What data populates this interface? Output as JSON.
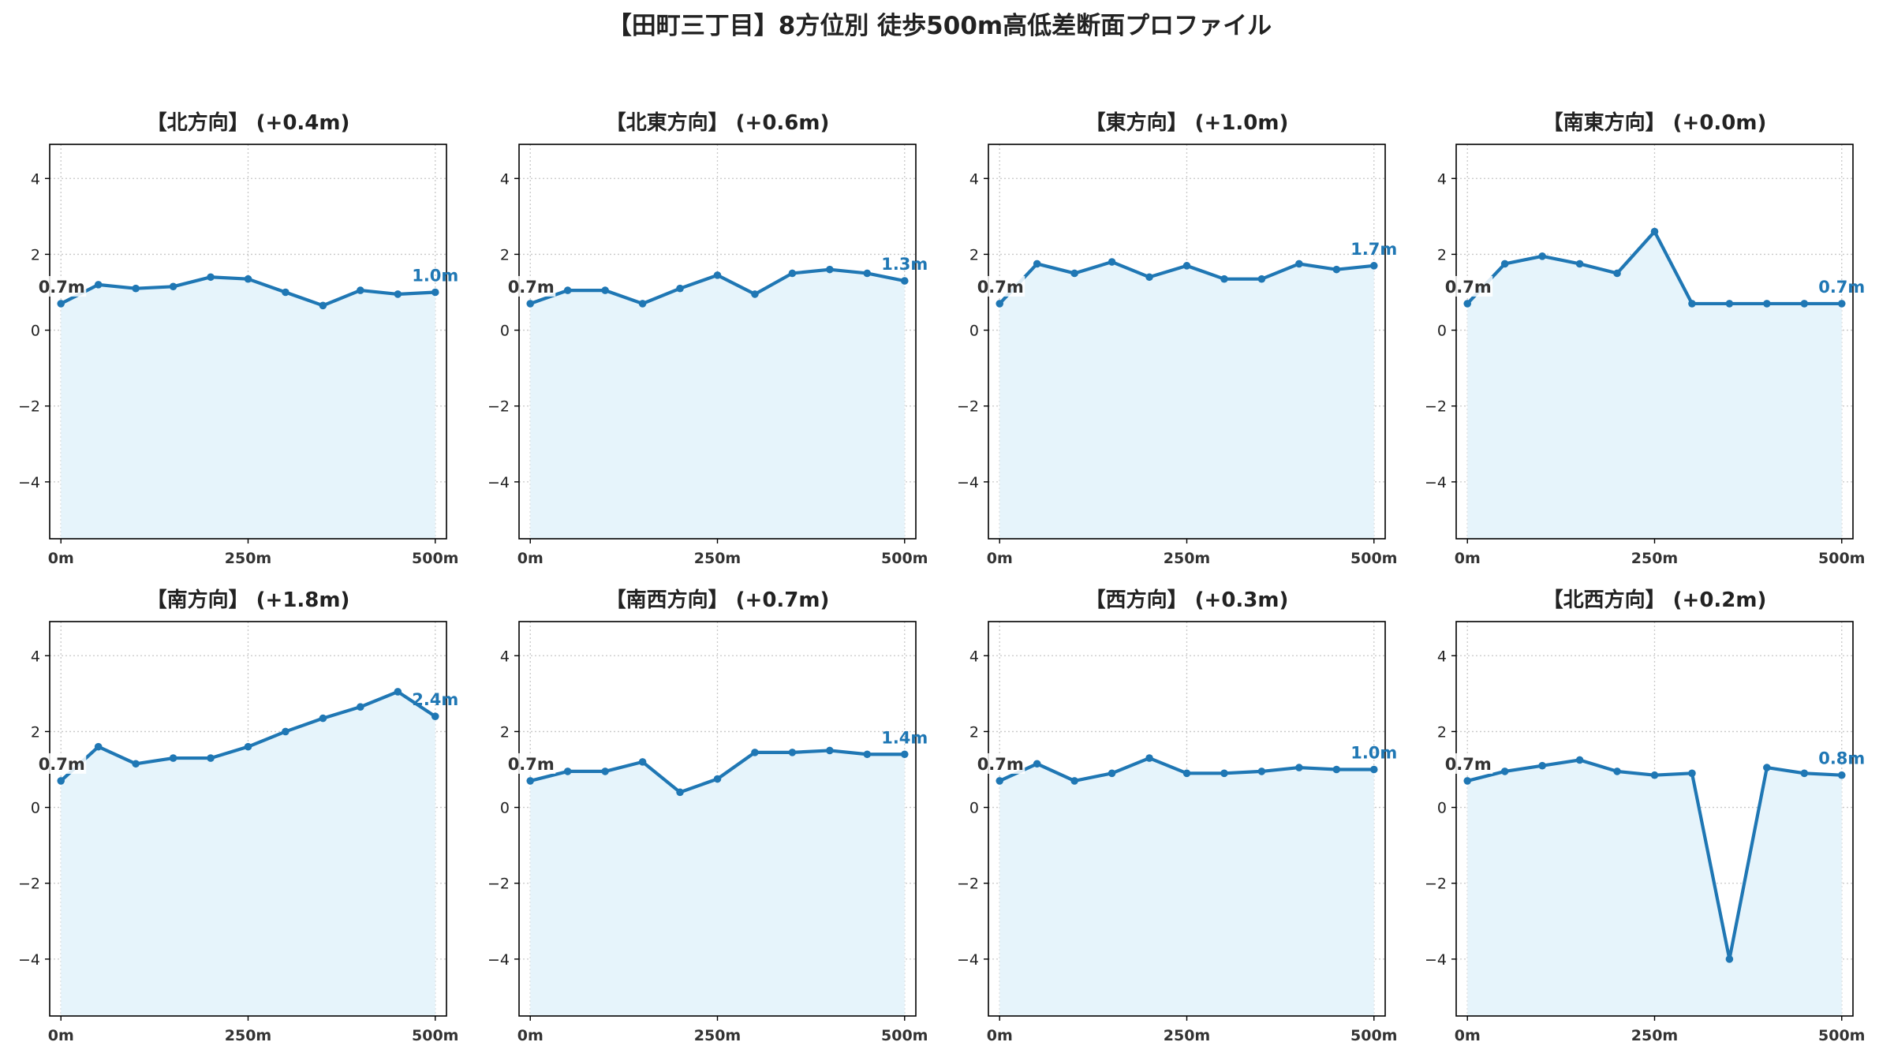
{
  "figure_title": "【田町三丁目】8方位別 徒歩500m高低差断面プロファイル",
  "colors": {
    "line": "#1f77b4",
    "fill": "#e6f4fb",
    "grid": "#c8c8c8",
    "start_label_text": "#333333",
    "end_label_text": "#1f77b4"
  },
  "chart_data": [
    {
      "type": "area",
      "title": "【北方向】 (+0.4m)",
      "x": [
        0,
        50,
        100,
        150,
        200,
        250,
        300,
        350,
        400,
        450,
        500
      ],
      "y": [
        0.7,
        1.2,
        1.1,
        1.15,
        1.4,
        1.35,
        1.0,
        0.65,
        1.05,
        0.95,
        1.0
      ],
      "start_label": "0.7m",
      "end_label": "1.0m",
      "xticks": [
        0,
        250,
        500
      ],
      "xtick_labels": [
        "0m",
        "250m",
        "500m"
      ],
      "yticks": [
        -4,
        -2,
        0,
        2,
        4
      ],
      "ytick_labels": [
        "−4",
        "−2",
        "0",
        "2",
        "4"
      ],
      "xlim": [
        -15,
        515
      ],
      "ylim": [
        -5.5,
        4.9
      ],
      "grid": true
    },
    {
      "type": "area",
      "title": "【北東方向】 (+0.6m)",
      "x": [
        0,
        50,
        100,
        150,
        200,
        250,
        300,
        350,
        400,
        450,
        500
      ],
      "y": [
        0.7,
        1.05,
        1.05,
        0.7,
        1.1,
        1.45,
        0.95,
        1.5,
        1.6,
        1.5,
        1.3
      ],
      "start_label": "0.7m",
      "end_label": "1.3m",
      "xticks": [
        0,
        250,
        500
      ],
      "xtick_labels": [
        "0m",
        "250m",
        "500m"
      ],
      "yticks": [
        -4,
        -2,
        0,
        2,
        4
      ],
      "ytick_labels": [
        "−4",
        "−2",
        "0",
        "2",
        "4"
      ],
      "xlim": [
        -15,
        515
      ],
      "ylim": [
        -5.5,
        4.9
      ],
      "grid": true
    },
    {
      "type": "area",
      "title": "【東方向】 (+1.0m)",
      "x": [
        0,
        50,
        100,
        150,
        200,
        250,
        300,
        350,
        400,
        450,
        500
      ],
      "y": [
        0.7,
        1.75,
        1.5,
        1.8,
        1.4,
        1.7,
        1.35,
        1.35,
        1.75,
        1.6,
        1.7
      ],
      "start_label": "0.7m",
      "end_label": "1.7m",
      "xticks": [
        0,
        250,
        500
      ],
      "xtick_labels": [
        "0m",
        "250m",
        "500m"
      ],
      "yticks": [
        -4,
        -2,
        0,
        2,
        4
      ],
      "ytick_labels": [
        "−4",
        "−2",
        "0",
        "2",
        "4"
      ],
      "xlim": [
        -15,
        515
      ],
      "ylim": [
        -5.5,
        4.9
      ],
      "grid": true
    },
    {
      "type": "area",
      "title": "【南東方向】 (+0.0m)",
      "x": [
        0,
        50,
        100,
        150,
        200,
        250,
        300,
        350,
        400,
        450,
        500
      ],
      "y": [
        0.7,
        1.75,
        1.95,
        1.75,
        1.5,
        2.6,
        0.7,
        0.7,
        0.7,
        0.7,
        0.7
      ],
      "start_label": "0.7m",
      "end_label": "0.7m",
      "xticks": [
        0,
        250,
        500
      ],
      "xtick_labels": [
        "0m",
        "250m",
        "500m"
      ],
      "yticks": [
        -4,
        -2,
        0,
        2,
        4
      ],
      "ytick_labels": [
        "−4",
        "−2",
        "0",
        "2",
        "4"
      ],
      "xlim": [
        -15,
        515
      ],
      "ylim": [
        -5.5,
        4.9
      ],
      "grid": true
    },
    {
      "type": "area",
      "title": "【南方向】 (+1.8m)",
      "x": [
        0,
        50,
        100,
        150,
        200,
        250,
        300,
        350,
        400,
        450,
        500
      ],
      "y": [
        0.7,
        1.6,
        1.15,
        1.3,
        1.3,
        1.6,
        2.0,
        2.35,
        2.65,
        3.05,
        2.4
      ],
      "start_label": "0.7m",
      "end_label": "2.4m",
      "xticks": [
        0,
        250,
        500
      ],
      "xtick_labels": [
        "0m",
        "250m",
        "500m"
      ],
      "yticks": [
        -4,
        -2,
        0,
        2,
        4
      ],
      "ytick_labels": [
        "−4",
        "−2",
        "0",
        "2",
        "4"
      ],
      "xlim": [
        -15,
        515
      ],
      "ylim": [
        -5.5,
        4.9
      ],
      "grid": true
    },
    {
      "type": "area",
      "title": "【南西方向】 (+0.7m)",
      "x": [
        0,
        50,
        100,
        150,
        200,
        250,
        300,
        350,
        400,
        450,
        500
      ],
      "y": [
        0.7,
        0.95,
        0.95,
        1.2,
        0.4,
        0.75,
        1.45,
        1.45,
        1.5,
        1.4,
        1.4
      ],
      "start_label": "0.7m",
      "end_label": "1.4m",
      "xticks": [
        0,
        250,
        500
      ],
      "xtick_labels": [
        "0m",
        "250m",
        "500m"
      ],
      "yticks": [
        -4,
        -2,
        0,
        2,
        4
      ],
      "ytick_labels": [
        "−4",
        "−2",
        "0",
        "2",
        "4"
      ],
      "xlim": [
        -15,
        515
      ],
      "ylim": [
        -5.5,
        4.9
      ],
      "grid": true
    },
    {
      "type": "area",
      "title": "【西方向】 (+0.3m)",
      "x": [
        0,
        50,
        100,
        150,
        200,
        250,
        300,
        350,
        400,
        450,
        500
      ],
      "y": [
        0.7,
        1.15,
        0.7,
        0.9,
        1.3,
        0.9,
        0.9,
        0.95,
        1.05,
        1.0,
        1.0
      ],
      "start_label": "0.7m",
      "end_label": "1.0m",
      "xticks": [
        0,
        250,
        500
      ],
      "xtick_labels": [
        "0m",
        "250m",
        "500m"
      ],
      "yticks": [
        -4,
        -2,
        0,
        2,
        4
      ],
      "ytick_labels": [
        "−4",
        "−2",
        "0",
        "2",
        "4"
      ],
      "xlim": [
        -15,
        515
      ],
      "ylim": [
        -5.5,
        4.9
      ],
      "grid": true
    },
    {
      "type": "area",
      "title": "【北西方向】 (+0.2m)",
      "x": [
        0,
        50,
        100,
        150,
        200,
        250,
        300,
        350,
        400,
        450,
        500
      ],
      "y": [
        0.7,
        0.95,
        1.1,
        1.25,
        0.95,
        0.85,
        0.9,
        -4.0,
        1.05,
        0.9,
        0.85
      ],
      "start_label": "0.7m",
      "end_label": "0.8m",
      "xticks": [
        0,
        250,
        500
      ],
      "xtick_labels": [
        "0m",
        "250m",
        "500m"
      ],
      "yticks": [
        -4,
        -2,
        0,
        2,
        4
      ],
      "ytick_labels": [
        "−4",
        "−2",
        "0",
        "2",
        "4"
      ],
      "xlim": [
        -15,
        515
      ],
      "ylim": [
        -5.5,
        4.9
      ],
      "grid": true
    }
  ]
}
